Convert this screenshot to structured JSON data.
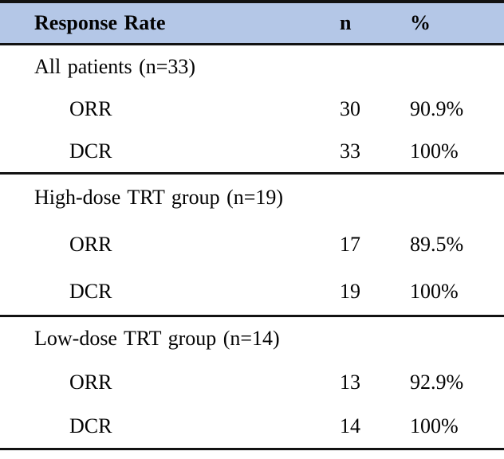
{
  "table": {
    "header": {
      "col1": "Response Rate",
      "col2": "n",
      "col3": "%"
    },
    "sections": [
      {
        "label": "All patients (n=33)",
        "rows": [
          {
            "name": "ORR",
            "n": "30",
            "pct": "90.9%"
          },
          {
            "name": "DCR",
            "n": "33",
            "pct": "100%"
          }
        ]
      },
      {
        "label": "High-dose TRT group (n=19)",
        "rows": [
          {
            "name": "ORR",
            "n": "17",
            "pct": "89.5%"
          },
          {
            "name": "DCR",
            "n": "19",
            "pct": "100%"
          }
        ]
      },
      {
        "label": "Low-dose TRT group (n=14)",
        "rows": [
          {
            "name": "ORR",
            "n": "13",
            "pct": "92.9%"
          },
          {
            "name": "DCR",
            "n": "14",
            "pct": "100%"
          }
        ]
      }
    ],
    "colors": {
      "header_bg": "#b4c7e7",
      "border": "#121212",
      "text": "#030303"
    }
  }
}
